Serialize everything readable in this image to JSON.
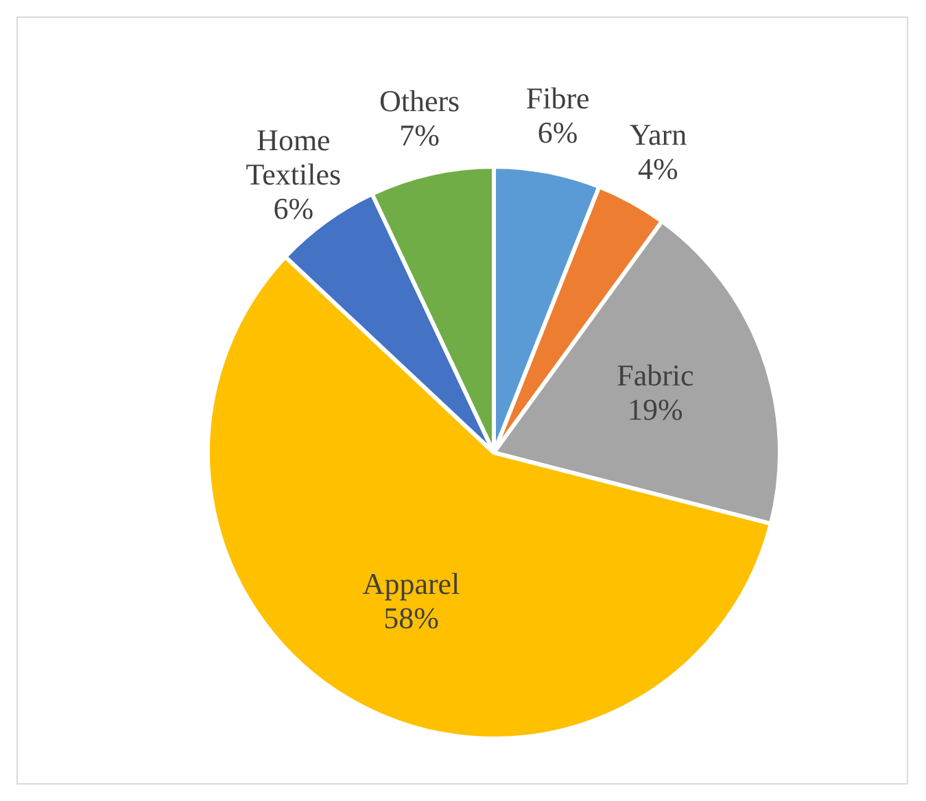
{
  "chart_data": {
    "type": "pie",
    "categories": [
      "Fibre",
      "Yarn",
      "Fabric",
      "Apparel",
      "Home Textiles",
      "Others"
    ],
    "values": [
      6,
      4,
      19,
      58,
      6,
      7
    ],
    "value_labels": [
      "6%",
      "4%",
      "19%",
      "58%",
      "6%",
      "7%"
    ],
    "colors": [
      "#5b9bd5",
      "#ed7d31",
      "#a5a5a5",
      "#ffc000",
      "#4472c4",
      "#70ad47"
    ],
    "legend": false
  }
}
